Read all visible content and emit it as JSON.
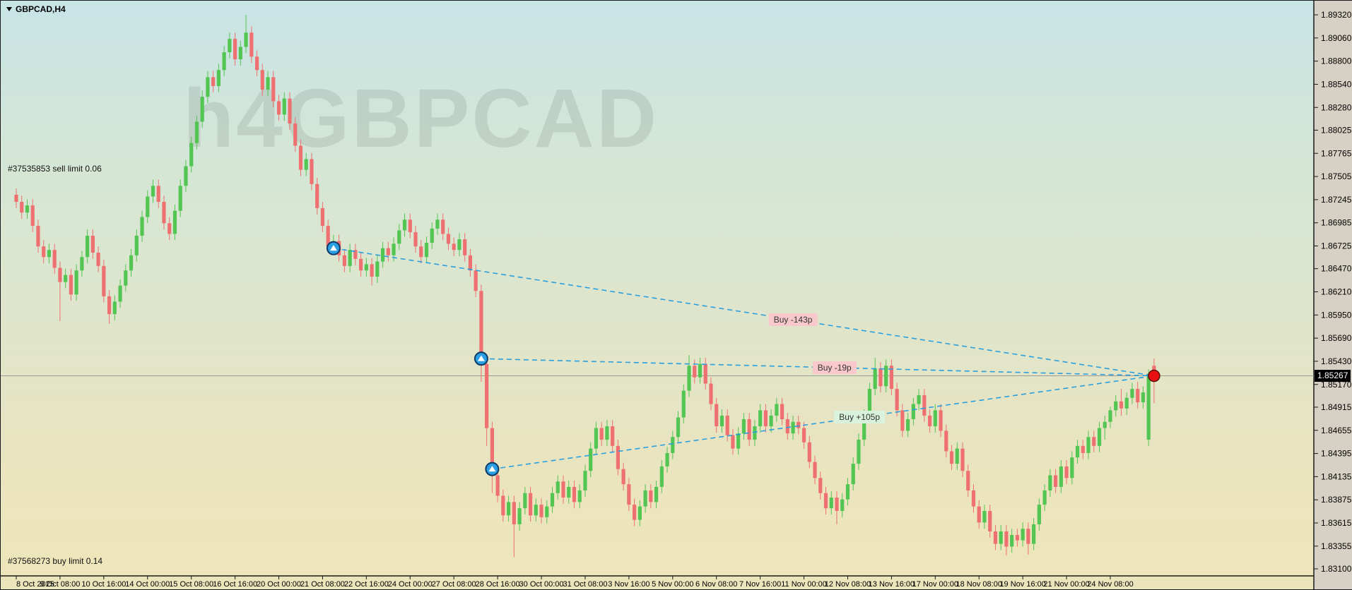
{
  "titlebar": {
    "symbol_label": "GBPCAD,H4"
  },
  "watermark": "h4GBPCAD",
  "orders": {
    "sell_limit": "#37535853 sell limit 0.06",
    "buy_limit": "#37568273 buy limit 0.14"
  },
  "price_tag": "1.85267",
  "colors": {
    "bg_top": "#c8e4e5",
    "bg_mid_green": "#d6e6d4",
    "bg_bottom": "#eee6ba",
    "axis_strip": "#d7d1c5",
    "bull": "#52c552",
    "bear": "#ee7070",
    "trade_line": "#2b9fdd",
    "loss_label_bg": "#f8c8cd",
    "profit_label_bg": "#d8f2dc",
    "current_price_line": "#9a9a92",
    "entry_marker_fill": "#2b9fe3",
    "entry_marker_stroke": "#0d3b66",
    "close_marker_fill": "#e81010",
    "price_tag_bg": "#000000"
  },
  "chart_data": {
    "type": "candlestick",
    "symbol": "GBPCAD",
    "timeframe": "H4",
    "title": "GBPCAD,H4",
    "current_price": 1.85267,
    "y_axis_labels": [
      "1.89320",
      "1.89060",
      "1.88800",
      "1.88540",
      "1.88280",
      "1.88025",
      "1.87765",
      "1.87505",
      "1.87245",
      "1.86985",
      "1.86725",
      "1.86470",
      "1.86210",
      "1.85950",
      "1.85690",
      "1.85430",
      "1.85170",
      "1.84915",
      "1.84655",
      "1.84395",
      "1.84135",
      "1.83875",
      "1.83615",
      "1.83355",
      "1.83100"
    ],
    "x_axis_labels": [
      "8 Oct 2025",
      "9 Oct 08:00",
      "10 Oct 16:00",
      "14 Oct 00:00",
      "15 Oct 08:00",
      "16 Oct 16:00",
      "20 Oct 00:00",
      "21 Oct 08:00",
      "22 Oct 16:00",
      "24 Oct 00:00",
      "27 Oct 08:00",
      "28 Oct 16:00",
      "30 Oct 00:00",
      "31 Oct 08:00",
      "3 Nov 16:00",
      "5 Nov 00:00",
      "6 Nov 08:00",
      "7 Nov 16:00",
      "11 Nov 00:00",
      "12 Nov 08:00",
      "13 Nov 16:00",
      "17 Nov 00:00",
      "18 Nov 08:00",
      "19 Nov 16:00",
      "21 Nov 00:00",
      "24 Nov 08:00"
    ],
    "ylim": [
      1.831,
      1.8932
    ],
    "grid": "off",
    "bars_per_x_label": 8,
    "candles": [
      [
        1.873,
        1.8737,
        1.8715,
        1.8722
      ],
      [
        1.8722,
        1.8729,
        1.8703,
        1.871
      ],
      [
        1.871,
        1.8725,
        1.8703,
        1.8718
      ],
      [
        1.8718,
        1.8725,
        1.8688,
        1.8695
      ],
      [
        1.8695,
        1.8702,
        1.8665,
        1.8672
      ],
      [
        1.8672,
        1.8679,
        1.8653,
        1.866
      ],
      [
        1.866,
        1.8675,
        1.8653,
        1.8668
      ],
      [
        1.8668,
        1.8675,
        1.8641,
        1.8648
      ],
      [
        1.8648,
        1.8655,
        1.8588,
        1.8632
      ],
      [
        1.8632,
        1.8647,
        1.8625,
        1.864
      ],
      [
        1.864,
        1.8647,
        1.8611,
        1.8618
      ],
      [
        1.8618,
        1.8652,
        1.8611,
        1.8645
      ],
      [
        1.8645,
        1.8667,
        1.8638,
        1.866
      ],
      [
        1.866,
        1.8691,
        1.8653,
        1.8684
      ],
      [
        1.8684,
        1.8691,
        1.8658,
        1.8665
      ],
      [
        1.8665,
        1.8672,
        1.8643,
        1.865
      ],
      [
        1.865,
        1.8657,
        1.8609,
        1.8616
      ],
      [
        1.8616,
        1.8623,
        1.8585,
        1.8596
      ],
      [
        1.8596,
        1.8617,
        1.8589,
        1.861
      ],
      [
        1.861,
        1.8635,
        1.8603,
        1.8628
      ],
      [
        1.8628,
        1.8652,
        1.8621,
        1.8645
      ],
      [
        1.8645,
        1.8669,
        1.8638,
        1.8662
      ],
      [
        1.8662,
        1.8691,
        1.8655,
        1.8684
      ],
      [
        1.8684,
        1.8712,
        1.8677,
        1.8705
      ],
      [
        1.8705,
        1.8735,
        1.8698,
        1.8728
      ],
      [
        1.8728,
        1.8747,
        1.8721,
        1.874
      ],
      [
        1.874,
        1.8747,
        1.8715,
        1.8722
      ],
      [
        1.8722,
        1.8729,
        1.8691,
        1.8698
      ],
      [
        1.8698,
        1.8705,
        1.8679,
        1.8686
      ],
      [
        1.8686,
        1.8719,
        1.8679,
        1.8712
      ],
      [
        1.8712,
        1.8747,
        1.8705,
        1.874
      ],
      [
        1.874,
        1.8769,
        1.8733,
        1.8762
      ],
      [
        1.8762,
        1.8795,
        1.8755,
        1.8788
      ],
      [
        1.8788,
        1.8819,
        1.8781,
        1.8812
      ],
      [
        1.8812,
        1.8847,
        1.8805,
        1.884
      ],
      [
        1.884,
        1.8869,
        1.8833,
        1.8862
      ],
      [
        1.8862,
        1.8869,
        1.8845,
        1.8852
      ],
      [
        1.8852,
        1.8877,
        1.8845,
        1.887
      ],
      [
        1.887,
        1.8897,
        1.8863,
        1.889
      ],
      [
        1.889,
        1.8912,
        1.8883,
        1.8905
      ],
      [
        1.8905,
        1.8912,
        1.8875,
        1.8882
      ],
      [
        1.8882,
        1.8903,
        1.8875,
        1.8896
      ],
      [
        1.8896,
        1.8932,
        1.8889,
        1.8912
      ],
      [
        1.8912,
        1.8919,
        1.8878,
        1.8885
      ],
      [
        1.8885,
        1.8892,
        1.8863,
        1.887
      ],
      [
        1.887,
        1.8877,
        1.8841,
        1.8848
      ],
      [
        1.8848,
        1.8869,
        1.8841,
        1.8862
      ],
      [
        1.8862,
        1.8869,
        1.8828,
        1.8835
      ],
      [
        1.8835,
        1.8842,
        1.8813,
        1.882
      ],
      [
        1.882,
        1.8845,
        1.8813,
        1.8838
      ],
      [
        1.8838,
        1.8845,
        1.8803,
        1.881
      ],
      [
        1.881,
        1.8817,
        1.8778,
        1.8785
      ],
      [
        1.8785,
        1.8792,
        1.8751,
        1.8758
      ],
      [
        1.8758,
        1.8777,
        1.8751,
        1.877
      ],
      [
        1.877,
        1.8777,
        1.8735,
        1.8742
      ],
      [
        1.8742,
        1.8749,
        1.8708,
        1.8715
      ],
      [
        1.8715,
        1.8722,
        1.8688,
        1.8695
      ],
      [
        1.8695,
        1.8702,
        1.8665,
        1.8672
      ],
      [
        1.8672,
        1.8685,
        1.8665,
        1.8678
      ],
      [
        1.8678,
        1.8685,
        1.8655,
        1.8662
      ],
      [
        1.8662,
        1.8669,
        1.8643,
        1.865
      ],
      [
        1.865,
        1.8675,
        1.8643,
        1.8668
      ],
      [
        1.8668,
        1.8675,
        1.8651,
        1.8658
      ],
      [
        1.8658,
        1.8665,
        1.8638,
        1.8645
      ],
      [
        1.8645,
        1.8659,
        1.8638,
        1.8652
      ],
      [
        1.8652,
        1.8659,
        1.8628,
        1.8638
      ],
      [
        1.8638,
        1.8662,
        1.8631,
        1.8655
      ],
      [
        1.8655,
        1.8677,
        1.8648,
        1.867
      ],
      [
        1.867,
        1.8677,
        1.8655,
        1.8662
      ],
      [
        1.8662,
        1.8682,
        1.8655,
        1.8675
      ],
      [
        1.8675,
        1.8697,
        1.8668,
        1.869
      ],
      [
        1.869,
        1.8709,
        1.8683,
        1.8702
      ],
      [
        1.8702,
        1.8709,
        1.8681,
        1.8688
      ],
      [
        1.8688,
        1.8695,
        1.8665,
        1.8672
      ],
      [
        1.8672,
        1.8679,
        1.8653,
        1.866
      ],
      [
        1.866,
        1.8683,
        1.8653,
        1.8676
      ],
      [
        1.8676,
        1.8699,
        1.8669,
        1.8692
      ],
      [
        1.8692,
        1.8709,
        1.8685,
        1.8702
      ],
      [
        1.8702,
        1.8709,
        1.8679,
        1.8686
      ],
      [
        1.8686,
        1.8693,
        1.8668,
        1.8675
      ],
      [
        1.8675,
        1.8682,
        1.8661,
        1.8668
      ],
      [
        1.8668,
        1.8687,
        1.8661,
        1.868
      ],
      [
        1.868,
        1.8687,
        1.8655,
        1.8662
      ],
      [
        1.8662,
        1.8669,
        1.8638,
        1.8645
      ],
      [
        1.8645,
        1.8652,
        1.8615,
        1.8622
      ],
      [
        1.8622,
        1.8629,
        1.852,
        1.854
      ],
      [
        1.854,
        1.8547,
        1.8448,
        1.8468
      ],
      [
        1.8468,
        1.8475,
        1.8395,
        1.8415
      ],
      [
        1.8415,
        1.8422,
        1.8385,
        1.8392
      ],
      [
        1.8392,
        1.8399,
        1.8363,
        1.837
      ],
      [
        1.837,
        1.8392,
        1.8363,
        1.8385
      ],
      [
        1.8385,
        1.8392,
        1.8323,
        1.836
      ],
      [
        1.836,
        1.8385,
        1.8353,
        1.8378
      ],
      [
        1.8378,
        1.8402,
        1.8371,
        1.8395
      ],
      [
        1.8395,
        1.8402,
        1.8363,
        1.837
      ],
      [
        1.837,
        1.8389,
        1.8363,
        1.8382
      ],
      [
        1.8382,
        1.8389,
        1.8361,
        1.8368
      ],
      [
        1.8368,
        1.8387,
        1.8361,
        1.838
      ],
      [
        1.838,
        1.8402,
        1.8373,
        1.8395
      ],
      [
        1.8395,
        1.8415,
        1.8388,
        1.8408
      ],
      [
        1.8408,
        1.8415,
        1.8383,
        1.839
      ],
      [
        1.839,
        1.8409,
        1.8383,
        1.8402
      ],
      [
        1.8402,
        1.8409,
        1.8378,
        1.8385
      ],
      [
        1.8385,
        1.8405,
        1.8378,
        1.8398
      ],
      [
        1.8398,
        1.8427,
        1.8391,
        1.842
      ],
      [
        1.842,
        1.8452,
        1.8413,
        1.8445
      ],
      [
        1.8445,
        1.8475,
        1.8438,
        1.8468
      ],
      [
        1.8468,
        1.8475,
        1.8448,
        1.8455
      ],
      [
        1.8455,
        1.8477,
        1.8448,
        1.847
      ],
      [
        1.847,
        1.8477,
        1.8441,
        1.8448
      ],
      [
        1.8448,
        1.8455,
        1.8415,
        1.8422
      ],
      [
        1.8422,
        1.8429,
        1.8398,
        1.8405
      ],
      [
        1.8405,
        1.8412,
        1.8375,
        1.8382
      ],
      [
        1.8382,
        1.8389,
        1.8358,
        1.8365
      ],
      [
        1.8365,
        1.8387,
        1.8358,
        1.838
      ],
      [
        1.838,
        1.8405,
        1.8373,
        1.8398
      ],
      [
        1.8398,
        1.8405,
        1.8378,
        1.8385
      ],
      [
        1.8385,
        1.8409,
        1.8378,
        1.8402
      ],
      [
        1.8402,
        1.8432,
        1.8395,
        1.8425
      ],
      [
        1.8425,
        1.8447,
        1.8418,
        1.844
      ],
      [
        1.844,
        1.8465,
        1.8433,
        1.8458
      ],
      [
        1.8458,
        1.8487,
        1.8451,
        1.848
      ],
      [
        1.848,
        1.8517,
        1.8473,
        1.851
      ],
      [
        1.851,
        1.855,
        1.8503,
        1.8538
      ],
      [
        1.8538,
        1.8545,
        1.8518,
        1.8525
      ],
      [
        1.8525,
        1.8547,
        1.8518,
        1.854
      ],
      [
        1.854,
        1.8547,
        1.8511,
        1.8518
      ],
      [
        1.8518,
        1.8525,
        1.8488,
        1.8495
      ],
      [
        1.8495,
        1.8502,
        1.8463,
        1.847
      ],
      [
        1.847,
        1.8489,
        1.8463,
        1.8482
      ],
      [
        1.8482,
        1.8489,
        1.8453,
        1.846
      ],
      [
        1.846,
        1.8467,
        1.8438,
        1.8445
      ],
      [
        1.8445,
        1.8469,
        1.8438,
        1.8462
      ],
      [
        1.8462,
        1.8485,
        1.8455,
        1.8478
      ],
      [
        1.8478,
        1.8485,
        1.8448,
        1.8455
      ],
      [
        1.8455,
        1.8477,
        1.8448,
        1.847
      ],
      [
        1.847,
        1.8495,
        1.8463,
        1.8488
      ],
      [
        1.8488,
        1.8495,
        1.8463,
        1.847
      ],
      [
        1.847,
        1.8489,
        1.8463,
        1.8482
      ],
      [
        1.8482,
        1.8502,
        1.8475,
        1.8495
      ],
      [
        1.8495,
        1.8502,
        1.8471,
        1.8478
      ],
      [
        1.8478,
        1.8485,
        1.8455,
        1.8462
      ],
      [
        1.8462,
        1.8482,
        1.8455,
        1.8475
      ],
      [
        1.8475,
        1.8482,
        1.8461,
        1.8468
      ],
      [
        1.8468,
        1.8475,
        1.8445,
        1.8452
      ],
      [
        1.8452,
        1.8459,
        1.8423,
        1.843
      ],
      [
        1.843,
        1.8437,
        1.8405,
        1.8412
      ],
      [
        1.8412,
        1.8419,
        1.8388,
        1.8395
      ],
      [
        1.8395,
        1.8402,
        1.8371,
        1.8378
      ],
      [
        1.8378,
        1.8397,
        1.8371,
        1.839
      ],
      [
        1.839,
        1.8397,
        1.836,
        1.8375
      ],
      [
        1.8375,
        1.8395,
        1.8368,
        1.8388
      ],
      [
        1.8388,
        1.8412,
        1.8381,
        1.8405
      ],
      [
        1.8405,
        1.8435,
        1.8398,
        1.8428
      ],
      [
        1.8428,
        1.8462,
        1.8421,
        1.8455
      ],
      [
        1.8455,
        1.8489,
        1.8448,
        1.8482
      ],
      [
        1.8482,
        1.8519,
        1.8475,
        1.8512
      ],
      [
        1.8512,
        1.8547,
        1.8505,
        1.8535
      ],
      [
        1.8535,
        1.8542,
        1.8508,
        1.8515
      ],
      [
        1.8515,
        1.8545,
        1.8508,
        1.8538
      ],
      [
        1.8538,
        1.8545,
        1.8505,
        1.8512
      ],
      [
        1.8512,
        1.8519,
        1.8481,
        1.8488
      ],
      [
        1.8488,
        1.8495,
        1.8458,
        1.8465
      ],
      [
        1.8465,
        1.8485,
        1.8458,
        1.8478
      ],
      [
        1.8478,
        1.8502,
        1.8471,
        1.8495
      ],
      [
        1.8495,
        1.8512,
        1.8488,
        1.8505
      ],
      [
        1.8505,
        1.8512,
        1.8475,
        1.8482
      ],
      [
        1.8482,
        1.8489,
        1.8463,
        1.847
      ],
      [
        1.847,
        1.8495,
        1.8463,
        1.8488
      ],
      [
        1.8488,
        1.8495,
        1.8458,
        1.8465
      ],
      [
        1.8465,
        1.8472,
        1.8435,
        1.8442
      ],
      [
        1.8442,
        1.8449,
        1.8421,
        1.8428
      ],
      [
        1.8428,
        1.8452,
        1.8421,
        1.8445
      ],
      [
        1.8445,
        1.8452,
        1.8413,
        1.842
      ],
      [
        1.842,
        1.8427,
        1.8391,
        1.8398
      ],
      [
        1.8398,
        1.8405,
        1.8373,
        1.838
      ],
      [
        1.838,
        1.8387,
        1.8355,
        1.8362
      ],
      [
        1.8362,
        1.8382,
        1.8355,
        1.8375
      ],
      [
        1.8375,
        1.8382,
        1.8345,
        1.8352
      ],
      [
        1.8352,
        1.8359,
        1.8331,
        1.8338
      ],
      [
        1.8338,
        1.8359,
        1.8331,
        1.8352
      ],
      [
        1.8352,
        1.8359,
        1.8325,
        1.8335
      ],
      [
        1.8335,
        1.8355,
        1.8328,
        1.8348
      ],
      [
        1.8348,
        1.8355,
        1.8335,
        1.8342
      ],
      [
        1.8342,
        1.8362,
        1.8335,
        1.8355
      ],
      [
        1.8355,
        1.8362,
        1.8326,
        1.8338
      ],
      [
        1.8338,
        1.8367,
        1.8331,
        1.836
      ],
      [
        1.836,
        1.8389,
        1.8353,
        1.8382
      ],
      [
        1.8382,
        1.8405,
        1.8375,
        1.8398
      ],
      [
        1.8398,
        1.8422,
        1.8391,
        1.8415
      ],
      [
        1.8415,
        1.8422,
        1.8395,
        1.8402
      ],
      [
        1.8402,
        1.8432,
        1.8395,
        1.8425
      ],
      [
        1.8425,
        1.8432,
        1.8405,
        1.8412
      ],
      [
        1.8412,
        1.8442,
        1.8405,
        1.8435
      ],
      [
        1.8435,
        1.8455,
        1.8428,
        1.8448
      ],
      [
        1.8448,
        1.8455,
        1.8433,
        1.844
      ],
      [
        1.844,
        1.8465,
        1.8433,
        1.8458
      ],
      [
        1.8458,
        1.8465,
        1.8441,
        1.8448
      ],
      [
        1.8448,
        1.8475,
        1.8441,
        1.8468
      ],
      [
        1.8468,
        1.8482,
        1.8455,
        1.8475
      ],
      [
        1.8475,
        1.8492,
        1.8468,
        1.8488
      ],
      [
        1.8488,
        1.8505,
        1.8481,
        1.8498
      ],
      [
        1.8498,
        1.8512,
        1.8482,
        1.849
      ],
      [
        1.849,
        1.8508,
        1.8483,
        1.8502
      ],
      [
        1.8502,
        1.8519,
        1.8495,
        1.8512
      ],
      [
        1.8512,
        1.852,
        1.849,
        1.8497
      ],
      [
        1.8497,
        1.8515,
        1.849,
        1.8508
      ],
      [
        1.8455,
        1.8534,
        1.8448,
        1.8529
      ],
      [
        1.8538,
        1.8546,
        1.8496,
        1.85267
      ]
    ],
    "trades": [
      {
        "label": "Buy -143p",
        "type": "loss",
        "entry_bar": 58,
        "entry_price": 1.867,
        "close_price": 1.85267,
        "pips": -143
      },
      {
        "label": "Buy -19p",
        "type": "loss",
        "entry_bar": 85,
        "entry_price": 1.8546,
        "close_price": 1.85267,
        "pips": -19
      },
      {
        "label": "Buy +105p",
        "type": "profit",
        "entry_bar": 87,
        "entry_price": 1.8422,
        "close_price": 1.85267,
        "pips": 105
      }
    ],
    "close_marker": {
      "bar": 208,
      "price": 1.85267
    }
  }
}
